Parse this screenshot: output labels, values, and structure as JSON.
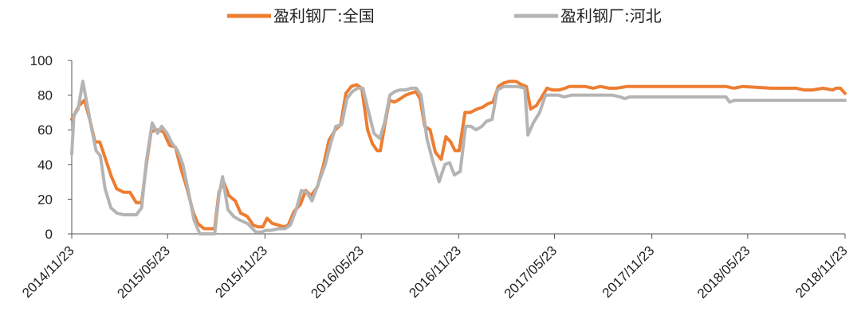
{
  "chart_data": {
    "type": "line",
    "title": "",
    "xlabel": "",
    "ylabel": "",
    "ylim": [
      0,
      100
    ],
    "yticks": [
      0,
      20,
      40,
      60,
      80,
      100
    ],
    "x_tick_labels": [
      "2014/11/23",
      "2015/05/23",
      "2015/11/23",
      "2016/05/23",
      "2016/11/23",
      "2017/05/23",
      "2017/11/23",
      "2018/05/23",
      "2018/11/23"
    ],
    "x_range": [
      "2014/11/23",
      "2018/11/23"
    ],
    "grid": false,
    "legend_position": "top-center",
    "series": [
      {
        "name": "盈利钢厂:全国",
        "color": "#ED7D31",
        "points": [
          [
            "2014/11/23",
            66
          ],
          [
            "2014/12/07",
            74
          ],
          [
            "2014/12/17",
            77
          ],
          [
            "2014/12/27",
            66
          ],
          [
            "2015/01/06",
            53
          ],
          [
            "2015/01/15",
            53
          ],
          [
            "2015/01/25",
            44
          ],
          [
            "2015/02/06",
            33
          ],
          [
            "2015/02/16",
            26
          ],
          [
            "2015/03/01",
            24
          ],
          [
            "2015/03/13",
            24
          ],
          [
            "2015/03/25",
            18
          ],
          [
            "2015/04/04",
            18
          ],
          [
            "2015/04/13",
            40
          ],
          [
            "2015/04/22",
            59
          ],
          [
            "2015/05/03",
            60
          ],
          [
            "2015/05/15",
            59
          ],
          [
            "2015/05/27",
            51
          ],
          [
            "2015/06/07",
            50
          ],
          [
            "2015/06/17",
            38
          ],
          [
            "2015/06/29",
            26
          ],
          [
            "2015/07/10",
            13
          ],
          [
            "2015/07/19",
            6
          ],
          [
            "2015/07/31",
            3
          ],
          [
            "2015/08/12",
            3
          ],
          [
            "2015/08/20",
            3
          ],
          [
            "2015/08/28",
            24
          ],
          [
            "2015/09/06",
            30
          ],
          [
            "2015/09/16",
            22
          ],
          [
            "2015/09/28",
            19
          ],
          [
            "2015/10/08",
            12
          ],
          [
            "2015/10/21",
            10
          ],
          [
            "2015/11/01",
            5
          ],
          [
            "2015/11/11",
            4
          ],
          [
            "2015/11/19",
            4
          ],
          [
            "2015/11/27",
            9
          ],
          [
            "2015/12/07",
            6
          ],
          [
            "2015/12/19",
            5
          ],
          [
            "2015/12/28",
            4
          ],
          [
            "2016/01/06",
            5
          ],
          [
            "2016/01/17",
            13
          ],
          [
            "2016/01/29",
            17
          ],
          [
            "2016/02/08",
            25
          ],
          [
            "2016/02/18",
            22
          ],
          [
            "2016/03/01",
            27
          ],
          [
            "2016/03/13",
            40
          ],
          [
            "2016/03/23",
            54
          ],
          [
            "2016/04/04",
            60
          ],
          [
            "2016/04/14",
            63
          ],
          [
            "2016/04/24",
            81
          ],
          [
            "2016/05/04",
            85
          ],
          [
            "2016/05/14",
            86
          ],
          [
            "2016/05/24",
            84
          ],
          [
            "2016/06/04",
            60
          ],
          [
            "2016/06/13",
            52
          ],
          [
            "2016/06/22",
            48
          ],
          [
            "2016/06/28",
            48
          ],
          [
            "2016/07/06",
            62
          ],
          [
            "2016/07/15",
            77
          ],
          [
            "2016/07/25",
            76
          ],
          [
            "2016/08/05",
            78
          ],
          [
            "2016/08/15",
            80
          ],
          [
            "2016/08/24",
            81
          ],
          [
            "2016/09/03",
            82
          ],
          [
            "2016/09/11",
            78
          ],
          [
            "2016/09/20",
            62
          ],
          [
            "2016/09/30",
            60
          ],
          [
            "2016/10/10",
            47
          ],
          [
            "2016/10/21",
            43
          ],
          [
            "2016/10/30",
            56
          ],
          [
            "2016/11/08",
            53
          ],
          [
            "2016/11/16",
            48
          ],
          [
            "2016/11/24",
            48
          ],
          [
            "2016/12/05",
            70
          ],
          [
            "2016/12/15",
            70
          ],
          [
            "2016/12/28",
            72
          ],
          [
            "2017/01/07",
            73
          ],
          [
            "2017/01/17",
            75
          ],
          [
            "2017/01/27",
            76
          ],
          [
            "2017/02/06",
            85
          ],
          [
            "2017/02/16",
            87
          ],
          [
            "2017/02/28",
            88
          ],
          [
            "2017/03/11",
            88
          ],
          [
            "2017/03/22",
            86
          ],
          [
            "2017/03/31",
            85
          ],
          [
            "2017/04/08",
            72
          ],
          [
            "2017/04/19",
            74
          ],
          [
            "2017/04/29",
            79
          ],
          [
            "2017/05/09",
            84
          ],
          [
            "2017/05/19",
            83
          ],
          [
            "2017/06/01",
            83
          ],
          [
            "2017/06/12",
            84
          ],
          [
            "2017/06/20",
            85
          ],
          [
            "2017/07/06",
            85
          ],
          [
            "2017/07/20",
            85
          ],
          [
            "2017/08/04",
            84
          ],
          [
            "2017/08/18",
            85
          ],
          [
            "2017/09/03",
            84
          ],
          [
            "2017/09/17",
            84
          ],
          [
            "2017/10/08",
            85
          ],
          [
            "2017/11/23",
            85
          ],
          [
            "2018/02/07",
            85
          ],
          [
            "2018/04/12",
            85
          ],
          [
            "2018/04/27",
            84
          ],
          [
            "2018/05/14",
            85
          ],
          [
            "2018/07/06",
            84
          ],
          [
            "2018/07/22",
            84
          ],
          [
            "2018/08/23",
            84
          ],
          [
            "2018/09/06",
            83
          ],
          [
            "2018/09/23",
            83
          ],
          [
            "2018/10/12",
            84
          ],
          [
            "2018/10/31",
            83
          ],
          [
            "2018/11/06",
            84
          ],
          [
            "2018/11/14",
            84
          ],
          [
            "2018/11/23",
            81
          ]
        ]
      },
      {
        "name": "盈利钢厂:河北",
        "color": "#B4B4B4",
        "points": [
          [
            "2014/11/23",
            46
          ],
          [
            "2014/11/27",
            68
          ],
          [
            "2014/12/05",
            72
          ],
          [
            "2014/12/14",
            88
          ],
          [
            "2014/12/23",
            73
          ],
          [
            "2014/12/31",
            60
          ],
          [
            "2015/01/08",
            48
          ],
          [
            "2015/01/16",
            45
          ],
          [
            "2015/01/25",
            26
          ],
          [
            "2015/02/05",
            15
          ],
          [
            "2015/02/16",
            12
          ],
          [
            "2015/03/01",
            11
          ],
          [
            "2015/03/13",
            11
          ],
          [
            "2015/03/25",
            11
          ],
          [
            "2015/04/04",
            15
          ],
          [
            "2015/04/13",
            42
          ],
          [
            "2015/04/24",
            64
          ],
          [
            "2015/05/04",
            58
          ],
          [
            "2015/05/12",
            62
          ],
          [
            "2015/05/22",
            58
          ],
          [
            "2015/06/01",
            52
          ],
          [
            "2015/06/11",
            48
          ],
          [
            "2015/06/21",
            40
          ],
          [
            "2015/07/01",
            25
          ],
          [
            "2015/07/12",
            8
          ],
          [
            "2015/07/23",
            0
          ],
          [
            "2015/08/07",
            0
          ],
          [
            "2015/08/20",
            0
          ],
          [
            "2015/08/28",
            22
          ],
          [
            "2015/09/04",
            33
          ],
          [
            "2015/09/14",
            14
          ],
          [
            "2015/09/25",
            10
          ],
          [
            "2015/10/06",
            8
          ],
          [
            "2015/10/21",
            6
          ],
          [
            "2015/11/06",
            1
          ],
          [
            "2015/11/16",
            1
          ],
          [
            "2015/11/25",
            2
          ],
          [
            "2015/12/05",
            2
          ],
          [
            "2015/12/19",
            3
          ],
          [
            "2015/12/31",
            3
          ],
          [
            "2016/01/10",
            5
          ],
          [
            "2016/01/21",
            14
          ],
          [
            "2016/01/31",
            25
          ],
          [
            "2016/02/10",
            24
          ],
          [
            "2016/02/20",
            19
          ],
          [
            "2016/03/04",
            30
          ],
          [
            "2016/03/16",
            40
          ],
          [
            "2016/03/26",
            52
          ],
          [
            "2016/04/05",
            62
          ],
          [
            "2016/04/16",
            63
          ],
          [
            "2016/04/26",
            78
          ],
          [
            "2016/05/06",
            82
          ],
          [
            "2016/05/16",
            84
          ],
          [
            "2016/05/26",
            84
          ],
          [
            "2016/06/06",
            70
          ],
          [
            "2016/06/16",
            58
          ],
          [
            "2016/06/27",
            55
          ],
          [
            "2016/07/06",
            64
          ],
          [
            "2016/07/16",
            80
          ],
          [
            "2016/07/25",
            82
          ],
          [
            "2016/08/04",
            83
          ],
          [
            "2016/08/15",
            83
          ],
          [
            "2016/08/25",
            84
          ],
          [
            "2016/09/04",
            84
          ],
          [
            "2016/09/13",
            80
          ],
          [
            "2016/09/24",
            55
          ],
          [
            "2016/10/05",
            42
          ],
          [
            "2016/10/17",
            30
          ],
          [
            "2016/10/28",
            40
          ],
          [
            "2016/11/06",
            41
          ],
          [
            "2016/11/15",
            34
          ],
          [
            "2016/11/26",
            36
          ],
          [
            "2016/12/06",
            62
          ],
          [
            "2016/12/16",
            62
          ],
          [
            "2016/12/26",
            60
          ],
          [
            "2017/01/06",
            62
          ],
          [
            "2017/01/15",
            65
          ],
          [
            "2017/01/25",
            66
          ],
          [
            "2017/02/04",
            83
          ],
          [
            "2017/02/16",
            85
          ],
          [
            "2017/02/28",
            85
          ],
          [
            "2017/03/14",
            85
          ],
          [
            "2017/03/28",
            84
          ],
          [
            "2017/04/03",
            57
          ],
          [
            "2017/04/13",
            64
          ],
          [
            "2017/04/25",
            70
          ],
          [
            "2017/05/06",
            80
          ],
          [
            "2017/05/17",
            80
          ],
          [
            "2017/05/30",
            80
          ],
          [
            "2017/06/10",
            79
          ],
          [
            "2017/06/25",
            80
          ],
          [
            "2017/07/14",
            80
          ],
          [
            "2017/08/03",
            80
          ],
          [
            "2017/08/22",
            80
          ],
          [
            "2017/09/09",
            80
          ],
          [
            "2017/09/24",
            79
          ],
          [
            "2017/10/03",
            78
          ],
          [
            "2017/10/12",
            79
          ],
          [
            "2017/11/23",
            79
          ],
          [
            "2018/01/23",
            79
          ],
          [
            "2018/03/28",
            79
          ],
          [
            "2018/04/12",
            79
          ],
          [
            "2018/04/19",
            76
          ],
          [
            "2018/04/28",
            77
          ],
          [
            "2018/05/23",
            77
          ],
          [
            "2018/07/31",
            77
          ],
          [
            "2018/10/02",
            77
          ],
          [
            "2018/11/23",
            77
          ]
        ]
      }
    ]
  }
}
